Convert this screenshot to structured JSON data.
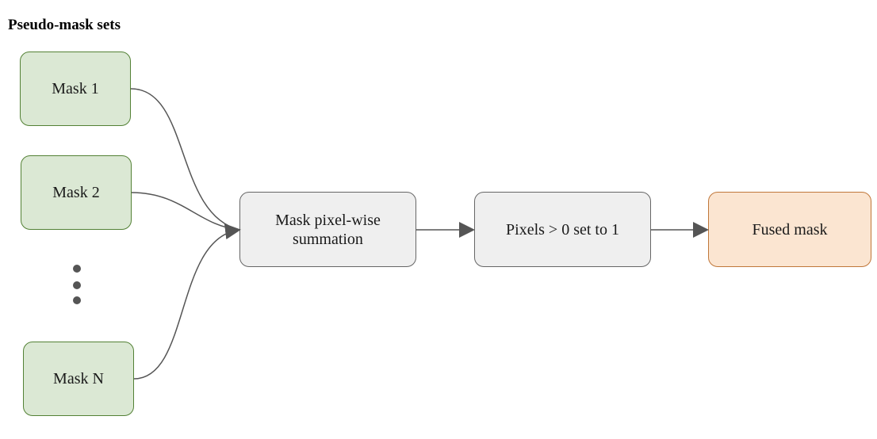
{
  "title": "Pseudo-mask sets",
  "masks": [
    {
      "label": "Mask 1"
    },
    {
      "label": "Mask 2"
    },
    {
      "label": "Mask N"
    }
  ],
  "ellipsis": "⋮",
  "steps": {
    "summation": "Mask pixel-wise summation",
    "threshold": "Pixels > 0 set to 1",
    "output": "Fused mask"
  },
  "colors": {
    "mask_fill": "#dbe8d4",
    "mask_border": "#538135",
    "process_fill": "#efefef",
    "process_border": "#666666",
    "output_fill": "#fbe5d1",
    "output_border": "#c0773a",
    "edge": "#555555"
  }
}
